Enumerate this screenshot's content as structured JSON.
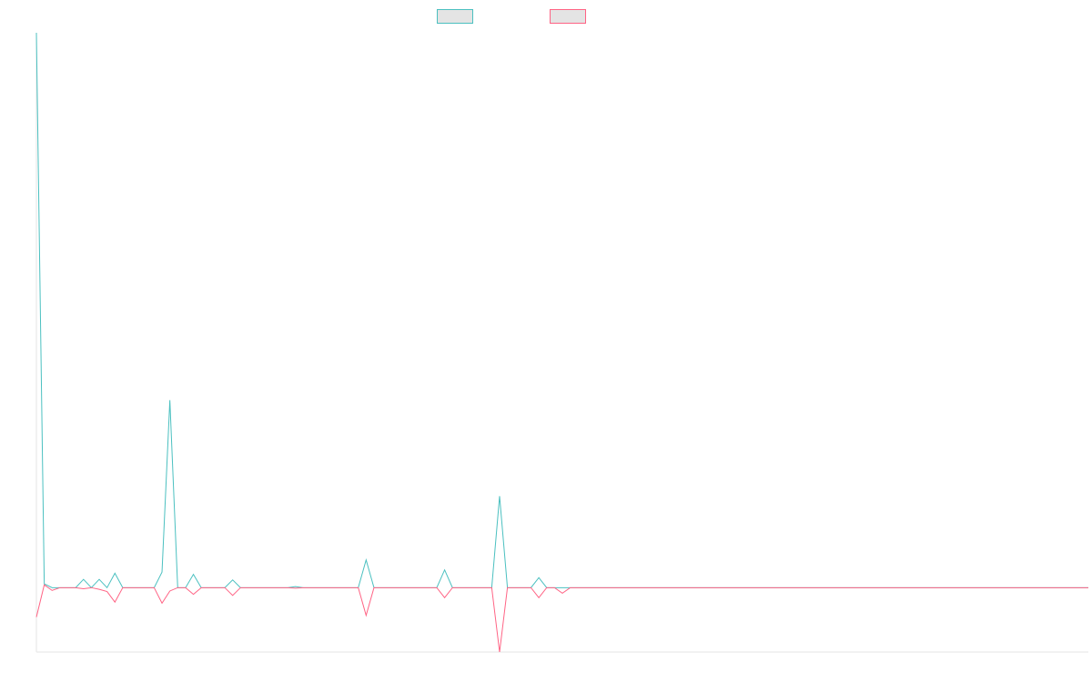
{
  "chart_data": {
    "type": "line",
    "title": "",
    "xlabel": "",
    "ylabel": "",
    "legend_position": "top-center",
    "grid": false,
    "xlim": [
      0,
      134
    ],
    "ylim": [
      -1.16,
      10.0
    ],
    "series": [
      {
        "label": "",
        "color": "#4bc0c0",
        "legend_fill": "#e4e4e4",
        "values": [
          10.0,
          0.07,
          0.0,
          0.0,
          0.0,
          0.0,
          0.0,
          0.0,
          0.0,
          0.0,
          0.0,
          0.0,
          0.0,
          0.0,
          0.0,
          0.0,
          0.0,
          0.0,
          0.0,
          0.0,
          0.0,
          0.0,
          0.0,
          0.0,
          0.0,
          0.0,
          0.0,
          0.0,
          0.0,
          0.0,
          0.0,
          0.0,
          0.0,
          0.0,
          0.0,
          0.0,
          0.0,
          0.0,
          0.0,
          0.0,
          0.0,
          0.0,
          0.0,
          0.0,
          0.0,
          0.0,
          0.0,
          0.0,
          0.0,
          0.0,
          0.0,
          0.0,
          0.0,
          0.0,
          0.0,
          0.0,
          0.0,
          0.0,
          0.0,
          0.0,
          0.0,
          0.0,
          0.0,
          0.0,
          0.0,
          0.0,
          0.0,
          0.0,
          0.0,
          0.0,
          0.0,
          0.0,
          0.0,
          0.0,
          0.0,
          0.0,
          0.0,
          0.0,
          0.0,
          0.0,
          0.0,
          0.0,
          0.0,
          0.0,
          0.0,
          0.0,
          0.0,
          0.0,
          0.0,
          0.0,
          0.0,
          0.0,
          0.0,
          0.0,
          0.0,
          0.0,
          0.0,
          0.0,
          0.0,
          0.0,
          0.0,
          0.0,
          0.0,
          0.0,
          0.0,
          0.0,
          0.0,
          0.0,
          0.0,
          0.0,
          0.0,
          0.0,
          0.0,
          0.0,
          0.0,
          0.0,
          0.0,
          0.0,
          0.0,
          0.0,
          0.0,
          0.0,
          0.0,
          0.0,
          0.0,
          0.0,
          0.0,
          0.0,
          0.0,
          0.0,
          0.0,
          0.0,
          0.0,
          0.0,
          0.0
        ]
      },
      {
        "label": "",
        "color": "#ff6384",
        "legend_fill": "#e4e4e4",
        "values": [
          -0.53,
          0.05,
          -0.05,
          0.0,
          0.0,
          0.0,
          0.0,
          0.0,
          0.0,
          0.0,
          0.0,
          0.0,
          0.0,
          0.0,
          0.0,
          0.0,
          0.0,
          0.0,
          0.0,
          0.0,
          0.0,
          0.0,
          0.0,
          0.0,
          0.0,
          0.0,
          0.0,
          0.0,
          0.0,
          0.0,
          0.0,
          0.0,
          0.0,
          0.0,
          0.0,
          0.0,
          0.0,
          0.0,
          0.0,
          0.0,
          0.0,
          0.0,
          0.0,
          0.0,
          0.0,
          0.0,
          0.0,
          0.0,
          0.0,
          0.0,
          0.0,
          0.0,
          0.0,
          0.0,
          0.0,
          0.0,
          0.0,
          0.0,
          0.0,
          0.0,
          0.0,
          0.0,
          0.0,
          0.0,
          0.0,
          0.0,
          0.0,
          0.0,
          0.0,
          0.0,
          0.0,
          0.0,
          0.0,
          0.0,
          0.0,
          0.0,
          0.0,
          0.0,
          0.0,
          0.0,
          0.0,
          0.0,
          0.0,
          0.0,
          0.0,
          0.0,
          0.0,
          0.0,
          0.0,
          0.0,
          0.0,
          0.0,
          0.0,
          0.0,
          0.0,
          0.0,
          0.0,
          0.0,
          0.0,
          0.0,
          0.0,
          0.0,
          0.0,
          0.0,
          0.0,
          0.0,
          0.0,
          0.0,
          0.0,
          0.0,
          0.0,
          0.0,
          0.0,
          0.0,
          0.0,
          0.0,
          0.0,
          0.0,
          0.0,
          0.0,
          0.0,
          0.0,
          0.0,
          0.0,
          0.0,
          0.0,
          0.0,
          0.0,
          0.0,
          0.0,
          0.0,
          0.0,
          0.0,
          0.0,
          0.0
        ]
      }
    ],
    "spikes": {
      "teal": [
        {
          "i": 6,
          "v": 0.15
        },
        {
          "i": 8,
          "v": 0.15
        },
        {
          "i": 10,
          "v": 0.26
        },
        {
          "i": 16,
          "v": 0.28
        },
        {
          "i": 17,
          "v": 3.38
        },
        {
          "i": 20,
          "v": 0.24
        },
        {
          "i": 25,
          "v": 0.14
        },
        {
          "i": 33,
          "v": 0.02
        },
        {
          "i": 42,
          "v": 0.5
        },
        {
          "i": 52,
          "v": 0.32
        },
        {
          "i": 59,
          "v": 1.65
        },
        {
          "i": 64,
          "v": 0.18
        }
      ],
      "pink": [
        {
          "i": 6,
          "v": -0.02
        },
        {
          "i": 8,
          "v": -0.03
        },
        {
          "i": 9,
          "v": -0.07
        },
        {
          "i": 10,
          "v": -0.26
        },
        {
          "i": 16,
          "v": -0.28
        },
        {
          "i": 17,
          "v": -0.06
        },
        {
          "i": 20,
          "v": -0.12
        },
        {
          "i": 25,
          "v": -0.14
        },
        {
          "i": 33,
          "v": -0.01
        },
        {
          "i": 42,
          "v": -0.5
        },
        {
          "i": 52,
          "v": -0.18
        },
        {
          "i": 59,
          "v": -1.16
        },
        {
          "i": 64,
          "v": -0.18
        },
        {
          "i": 67,
          "v": -0.1
        }
      ]
    }
  }
}
